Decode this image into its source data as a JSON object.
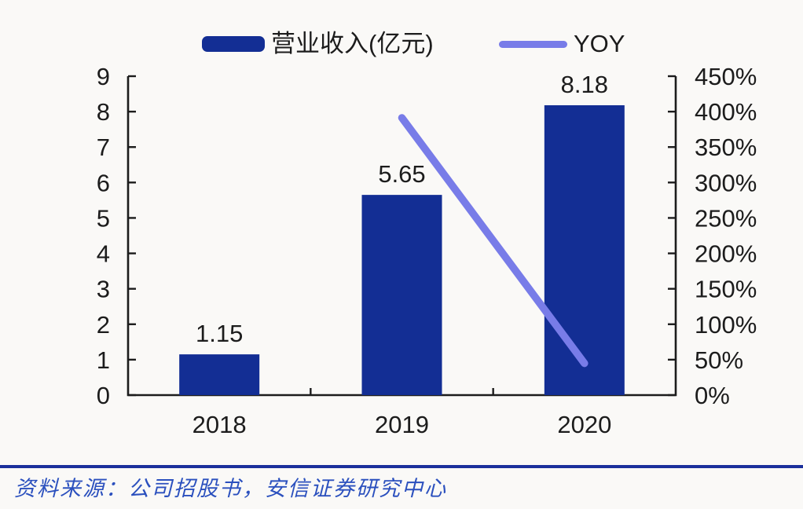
{
  "page": {
    "background": "#FAF9F7"
  },
  "legend": {
    "bar_label": "营业收入(亿元)",
    "line_label": "YOY",
    "bar_color": "#132E94",
    "line_color": "#787CE8"
  },
  "chart_data": {
    "type": "bar+line combo",
    "title": "",
    "categories": [
      "2018",
      "2019",
      "2020"
    ],
    "series": [
      {
        "name": "营业收入(亿元)",
        "type": "bar",
        "axis": "left",
        "values": [
          1.15,
          5.65,
          8.18
        ],
        "labels": [
          "1.15",
          "5.65",
          "8.18"
        ],
        "color": "#132E94"
      },
      {
        "name": "YOY",
        "type": "line",
        "axis": "right",
        "values": [
          null,
          391.3,
          44.8
        ],
        "color": "#787CE8"
      }
    ],
    "left_axis": {
      "min": 0,
      "max": 9,
      "step": 1,
      "ticks": [
        "0",
        "1",
        "2",
        "3",
        "4",
        "5",
        "6",
        "7",
        "8",
        "9"
      ]
    },
    "right_axis": {
      "min": 0,
      "max": 450,
      "step": 50,
      "ticks": [
        "0%",
        "50%",
        "100%",
        "150%",
        "200%",
        "250%",
        "300%",
        "350%",
        "400%",
        "450%"
      ]
    },
    "grid": false,
    "legend_position": "top"
  },
  "footer": {
    "source_text": "资料来源：公司招股书，安信证券研究中心",
    "text_color": "#2B50BE",
    "rule_color": "#1B2F9B"
  }
}
